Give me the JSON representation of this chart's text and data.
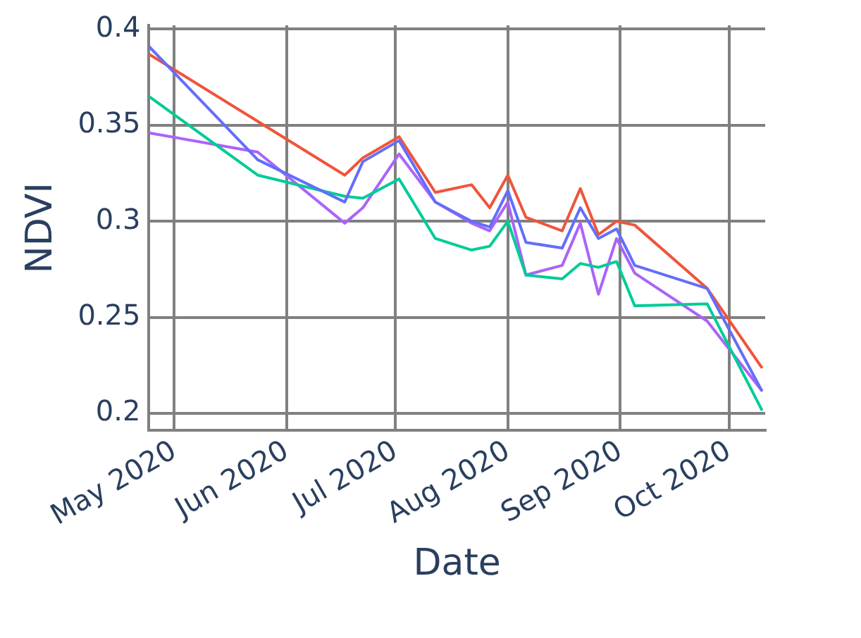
{
  "chart_data": {
    "type": "line",
    "xlabel": "Date",
    "ylabel": "NDVI",
    "x": [
      "2020-04-24",
      "2020-05-24",
      "2020-06-17",
      "2020-06-22",
      "2020-07-02",
      "2020-07-12",
      "2020-07-22",
      "2020-07-27",
      "2020-08-01",
      "2020-08-06",
      "2020-08-16",
      "2020-08-21",
      "2020-08-26",
      "2020-08-31",
      "2020-09-05",
      "2020-09-25",
      "2020-10-10"
    ],
    "series": [
      {
        "color": "#636efa",
        "values": [
          0.391,
          0.332,
          0.31,
          0.331,
          0.342,
          0.31,
          0.3,
          0.297,
          0.316,
          0.289,
          0.286,
          0.307,
          0.291,
          0.296,
          0.277,
          0.265,
          0.212
        ]
      },
      {
        "color": "#ef553b",
        "x": [
          "2020-04-24",
          "2020-06-17",
          "2020-06-22",
          "2020-07-02",
          "2020-07-12",
          "2020-07-22",
          "2020-07-27",
          "2020-08-01",
          "2020-08-06",
          "2020-08-16",
          "2020-08-21",
          "2020-08-26",
          "2020-08-31",
          "2020-09-05",
          "2020-09-25",
          "2020-10-10"
        ],
        "values": [
          0.387,
          0.324,
          0.333,
          0.344,
          0.315,
          0.319,
          0.307,
          0.324,
          0.302,
          0.295,
          0.317,
          0.293,
          0.3,
          0.298,
          0.265,
          0.224
        ]
      },
      {
        "color": "#00cc96",
        "values": [
          0.365,
          0.324,
          0.313,
          0.312,
          0.322,
          0.291,
          0.285,
          0.287,
          0.3,
          0.272,
          0.27,
          0.278,
          0.276,
          0.279,
          0.256,
          0.257,
          0.202
        ]
      },
      {
        "color": "#ab63fa",
        "values": [
          0.346,
          0.336,
          0.299,
          0.307,
          0.335,
          0.31,
          0.299,
          0.295,
          0.31,
          0.272,
          0.277,
          0.299,
          0.262,
          0.291,
          0.273,
          0.248,
          0.212
        ]
      }
    ],
    "xlim": [
      "2020-04-24",
      "2020-10-11"
    ],
    "xticks": [
      {
        "value": "2020-05-01",
        "label": "May 2020"
      },
      {
        "value": "2020-06-01",
        "label": "Jun 2020"
      },
      {
        "value": "2020-07-01",
        "label": "Jul 2020"
      },
      {
        "value": "2020-08-01",
        "label": "Aug 2020"
      },
      {
        "value": "2020-09-01",
        "label": "Sep 2020"
      },
      {
        "value": "2020-10-01",
        "label": "Oct 2020"
      }
    ],
    "ylim": [
      0.191,
      0.402
    ],
    "yticks": [
      0.2,
      0.25,
      0.3,
      0.35,
      0.4
    ],
    "grid": true,
    "legend": false,
    "marker": "none",
    "line_style": "solid"
  }
}
